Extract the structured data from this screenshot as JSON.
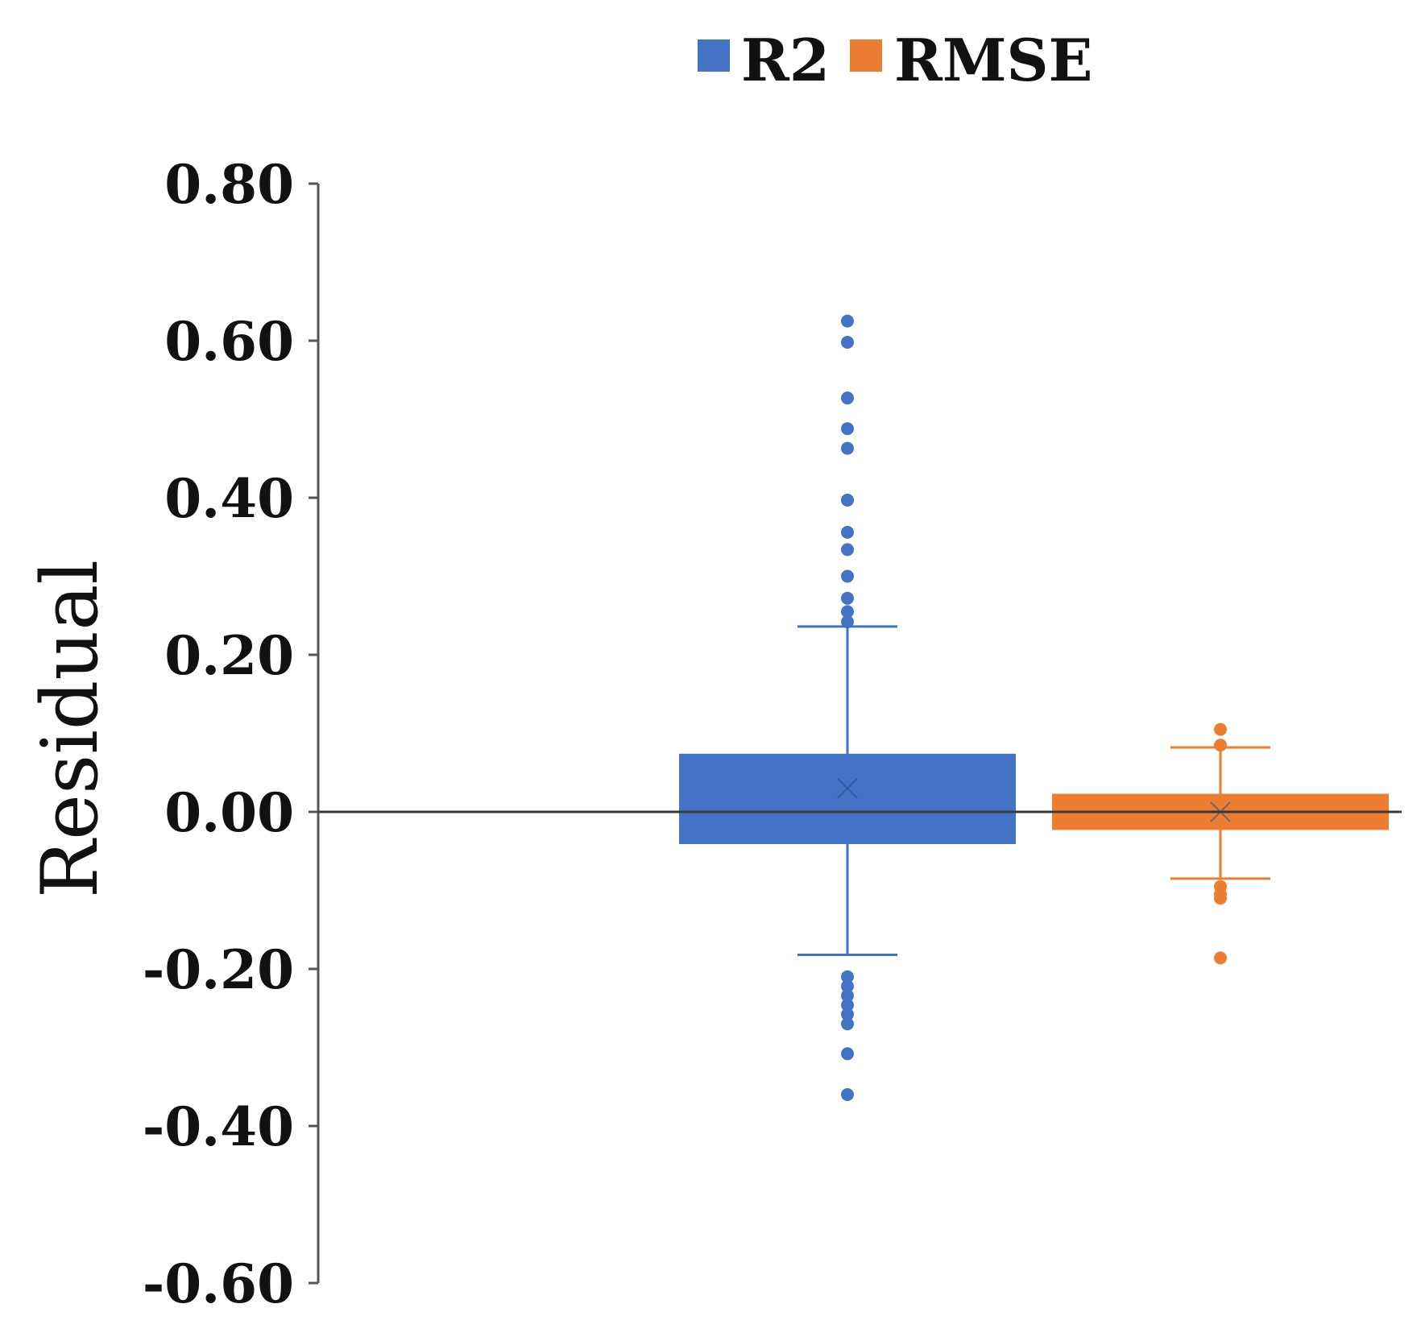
{
  "chart_data": {
    "type": "box",
    "ylabel": "Residual",
    "ylim": [
      -0.6,
      0.8
    ],
    "yticks": [
      "0.80",
      "0.60",
      "0.40",
      "0.20",
      "0.00",
      "-0.20",
      "-0.40",
      "-0.60"
    ],
    "ytick_values": [
      0.8,
      0.6,
      0.4,
      0.2,
      0.0,
      -0.2,
      -0.4,
      -0.6
    ],
    "grid": false,
    "legend_position": "top-center",
    "series": [
      {
        "name": "R2",
        "color": "#4472C4",
        "q1": -0.04,
        "q3": 0.073,
        "median": 0.0,
        "mean": 0.03,
        "whisker_low": -0.182,
        "whisker_high": 0.236,
        "outliers": [
          0.625,
          0.598,
          0.527,
          0.488,
          0.463,
          0.397,
          0.356,
          0.334,
          0.3,
          0.272,
          0.255,
          0.242,
          -0.21,
          -0.222,
          -0.234,
          -0.246,
          -0.258,
          -0.27,
          -0.308,
          -0.36
        ]
      },
      {
        "name": "RMSE",
        "color": "#ED7D31",
        "q1": -0.022,
        "q3": 0.022,
        "median": 0.0,
        "mean": 0.0,
        "whisker_low": -0.085,
        "whisker_high": 0.082,
        "outliers": [
          0.105,
          0.085,
          -0.095,
          -0.105,
          -0.11,
          -0.186
        ]
      }
    ]
  }
}
